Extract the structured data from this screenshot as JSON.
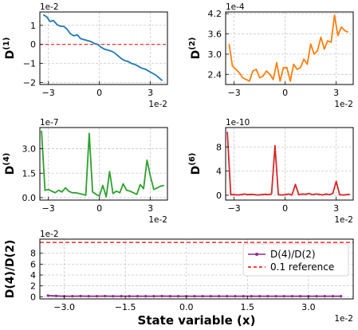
{
  "chart_data": [
    {
      "type": "line",
      "ylabel_base": "D",
      "ylabel_sup": "(1)",
      "x_multiplier": "1e-2",
      "y_multiplier": "1e-2",
      "xlim": [
        -3.5,
        4.0
      ],
      "ylim": [
        -2.1,
        1.7
      ],
      "xticks": [
        -3,
        0,
        3
      ],
      "xtick_labels": [
        "−3",
        "0",
        "3"
      ],
      "yticks": [
        -2,
        -1,
        0,
        1
      ],
      "ytick_labels": [
        "−2",
        "−1",
        "0",
        "1"
      ],
      "grid": true,
      "hline": {
        "y": 0,
        "color": "#ff0000"
      },
      "series": [
        {
          "color": "#1f77b4",
          "x": [
            -3.3,
            -3.1,
            -2.9,
            -2.7,
            -2.5,
            -2.3,
            -2.1,
            -1.9,
            -1.7,
            -1.5,
            -1.3,
            -1.1,
            -0.9,
            -0.7,
            -0.5,
            -0.3,
            -0.1,
            0.1,
            0.3,
            0.5,
            0.7,
            0.9,
            1.1,
            1.3,
            1.5,
            1.7,
            1.9,
            2.1,
            2.3,
            2.5,
            2.7,
            2.9,
            3.1,
            3.3,
            3.5,
            3.7
          ],
          "y": [
            1.55,
            1.45,
            1.2,
            1.25,
            1.05,
            0.95,
            0.95,
            0.8,
            0.55,
            0.45,
            0.5,
            0.3,
            0.25,
            0.2,
            0.15,
            0.05,
            0.0,
            -0.15,
            -0.25,
            -0.3,
            -0.35,
            -0.45,
            -0.6,
            -0.75,
            -0.85,
            -0.9,
            -1.0,
            -1.05,
            -1.15,
            -1.25,
            -1.3,
            -1.4,
            -1.5,
            -1.6,
            -1.75,
            -1.9
          ]
        }
      ]
    },
    {
      "type": "line",
      "ylabel_base": "D",
      "ylabel_sup": "(2)",
      "x_multiplier": "1e-2",
      "y_multiplier": "1e-4",
      "xlim": [
        -3.5,
        4.0
      ],
      "ylim": [
        2.1,
        4.25
      ],
      "xticks": [
        -3,
        0,
        3
      ],
      "xtick_labels": [
        "−3",
        "0",
        "3"
      ],
      "yticks": [
        2.4,
        3.0,
        3.6,
        4.2
      ],
      "ytick_labels": [
        "2.4",
        "3.0",
        "3.6",
        "4.2"
      ],
      "grid": true,
      "series": [
        {
          "color": "#ff7f0e",
          "x": [
            -3.3,
            -3.1,
            -2.9,
            -2.7,
            -2.5,
            -2.3,
            -2.1,
            -1.9,
            -1.7,
            -1.5,
            -1.3,
            -1.1,
            -0.9,
            -0.7,
            -0.5,
            -0.3,
            -0.1,
            0.1,
            0.3,
            0.5,
            0.7,
            0.9,
            1.1,
            1.3,
            1.5,
            1.7,
            1.9,
            2.1,
            2.3,
            2.5,
            2.7,
            2.9,
            3.1,
            3.3,
            3.5,
            3.7
          ],
          "y": [
            3.3,
            2.65,
            2.55,
            2.45,
            2.3,
            2.25,
            2.2,
            2.5,
            2.55,
            2.3,
            2.35,
            2.5,
            2.4,
            2.25,
            2.75,
            2.2,
            2.6,
            2.6,
            2.2,
            2.7,
            2.55,
            2.6,
            2.85,
            2.7,
            3.3,
            3.0,
            3.1,
            3.5,
            3.15,
            3.4,
            3.35,
            4.15,
            3.55,
            3.8,
            3.7,
            3.65
          ]
        }
      ]
    },
    {
      "type": "line",
      "ylabel_base": "D",
      "ylabel_sup": "(4)",
      "x_multiplier": "1e-2",
      "y_multiplier": "1e-7",
      "xlim": [
        -3.5,
        4.0
      ],
      "ylim": [
        -0.15,
        4.3
      ],
      "xticks": [
        -3,
        0,
        3
      ],
      "xtick_labels": [
        "−3",
        "0",
        "3"
      ],
      "yticks": [
        0.0,
        1.5,
        3.0
      ],
      "ytick_labels": [
        "0.0",
        "1.5",
        "3.0"
      ],
      "grid": true,
      "series": [
        {
          "color": "#2ca02c",
          "x": [
            -3.4,
            -3.2,
            -3.0,
            -2.8,
            -2.6,
            -2.4,
            -2.2,
            -2.0,
            -1.8,
            -1.6,
            -1.4,
            -1.2,
            -1.0,
            -0.8,
            -0.6,
            -0.4,
            -0.2,
            0.0,
            0.2,
            0.4,
            0.6,
            0.8,
            1.0,
            1.2,
            1.4,
            1.6,
            1.8,
            2.0,
            2.2,
            2.4,
            2.6,
            2.8,
            3.0,
            3.2,
            3.4,
            3.6,
            3.8
          ],
          "y": [
            4.1,
            0.45,
            0.5,
            0.4,
            0.3,
            0.45,
            0.35,
            0.6,
            0.4,
            0.3,
            0.3,
            0.25,
            0.2,
            0.15,
            3.95,
            0.35,
            0.2,
            0.1,
            0.75,
            0.05,
            1.6,
            0.25,
            0.4,
            0.3,
            0.85,
            0.45,
            0.4,
            0.3,
            0.2,
            0.8,
            0.55,
            2.3,
            1.3,
            0.5,
            0.6,
            0.7,
            0.75
          ]
        }
      ]
    },
    {
      "type": "line",
      "ylabel_base": "D",
      "ylabel_sup": "(6)",
      "x_multiplier": "1e-2",
      "y_multiplier": "1e-10",
      "xlim": [
        -3.5,
        4.0
      ],
      "ylim": [
        -0.8,
        11.2
      ],
      "xticks": [
        -3,
        0,
        3
      ],
      "xtick_labels": [
        "−3",
        "0",
        "3"
      ],
      "yticks": [
        0,
        4,
        8
      ],
      "ytick_labels": [
        "0",
        "4",
        "8"
      ],
      "grid": true,
      "series": [
        {
          "color": "#d62728",
          "x": [
            -3.4,
            -3.2,
            -3.0,
            -2.8,
            -2.6,
            -2.4,
            -2.2,
            -2.0,
            -1.8,
            -1.6,
            -1.4,
            -1.2,
            -1.0,
            -0.8,
            -0.6,
            -0.4,
            -0.2,
            0.0,
            0.2,
            0.4,
            0.6,
            0.8,
            1.0,
            1.2,
            1.4,
            1.6,
            1.8,
            2.0,
            2.2,
            2.4,
            2.6,
            2.8,
            3.0,
            3.2,
            3.4,
            3.6,
            3.8
          ],
          "y": [
            10.5,
            0.1,
            0.1,
            0.05,
            0.1,
            0.2,
            0.1,
            0.15,
            0.1,
            0.05,
            0.1,
            0.15,
            0.1,
            0.2,
            8.2,
            0.1,
            0.05,
            0.1,
            0.2,
            0.05,
            1.8,
            0.1,
            0.2,
            0.15,
            0.3,
            0.1,
            0.2,
            0.15,
            0.05,
            0.2,
            0.1,
            0.3,
            2.3,
            0.1,
            0.05,
            0.1,
            0.15
          ]
        }
      ]
    },
    {
      "type": "line",
      "ylabel_text": "D(4)/D(2)",
      "xlabel": "State variable (x)",
      "x_multiplier": "1e-2",
      "y_multiplier": "1e-2",
      "xlim": [
        -3.6,
        4.1
      ],
      "ylim": [
        -0.4,
        10.6
      ],
      "xticks": [
        -3.0,
        -1.5,
        0.0,
        1.5,
        3.0
      ],
      "xtick_labels": [
        "−3.0",
        "−1.5",
        "0.0",
        "1.5",
        "3.0"
      ],
      "yticks": [
        0,
        2,
        4,
        6,
        8
      ],
      "ytick_labels": [
        "0",
        "2",
        "4",
        "6",
        "8"
      ],
      "grid": true,
      "legend_position": "top-right",
      "legend": [
        {
          "label": "D(4)/D(2)",
          "color": "#8b2c8b",
          "style": "line-marker"
        },
        {
          "label": "0.1 reference",
          "color": "#ff0000",
          "style": "dashed"
        }
      ],
      "reference_line": {
        "y": 10,
        "color": "#ff0000",
        "label": "0.1 reference"
      },
      "series": [
        {
          "name": "D(4)/D(2)",
          "color": "#8b2c8b",
          "x": [
            -3.4,
            -3.2,
            -3.0,
            -2.8,
            -2.6,
            -2.4,
            -2.2,
            -2.0,
            -1.8,
            -1.6,
            -1.4,
            -1.2,
            -1.0,
            -0.8,
            -0.6,
            -0.4,
            -0.2,
            0.0,
            0.2,
            0.4,
            0.6,
            0.8,
            1.0,
            1.2,
            1.4,
            1.6,
            1.8,
            2.0,
            2.2,
            2.4,
            2.6,
            2.8,
            3.0,
            3.2,
            3.4,
            3.6,
            3.8
          ],
          "y": [
            0.2,
            0.15,
            0.1,
            0.1,
            0.12,
            0.1,
            0.1,
            0.12,
            0.1,
            0.1,
            0.1,
            0.1,
            0.1,
            0.1,
            0.12,
            0.1,
            0.1,
            0.1,
            0.1,
            0.1,
            0.1,
            0.1,
            0.1,
            0.1,
            0.1,
            0.1,
            0.1,
            0.1,
            0.1,
            0.1,
            0.1,
            0.1,
            0.1,
            0.1,
            0.1,
            0.1,
            0.1
          ]
        }
      ]
    }
  ]
}
